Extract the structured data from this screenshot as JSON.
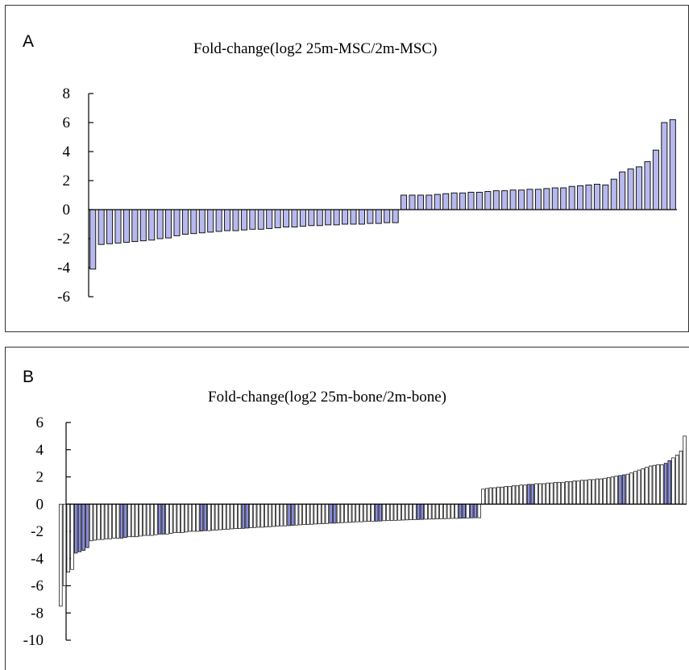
{
  "chart_data": [
    {
      "panel": "A",
      "type": "bar",
      "title": "Fold-change(log2 25m-MSC/2m-MSC)",
      "ylim": [
        -6,
        8
      ],
      "yticks": [
        8,
        6,
        4,
        2,
        0,
        -2,
        -4,
        -6
      ],
      "grid": false,
      "legend": "none",
      "colors": {
        "bar_fill": "#b7b9ee",
        "bar_edge": "#000000"
      },
      "values": [
        -4.1,
        -2.4,
        -2.35,
        -2.3,
        -2.25,
        -2.2,
        -2.15,
        -2.1,
        -2.0,
        -1.95,
        -1.8,
        -1.7,
        -1.65,
        -1.6,
        -1.55,
        -1.5,
        -1.45,
        -1.45,
        -1.4,
        -1.35,
        -1.35,
        -1.3,
        -1.25,
        -1.2,
        -1.2,
        -1.15,
        -1.1,
        -1.1,
        -1.05,
        -1.05,
        -1.0,
        -1.0,
        -1.0,
        -0.95,
        -0.95,
        -0.9,
        -0.9,
        1.0,
        1.0,
        1.0,
        1.0,
        1.05,
        1.1,
        1.15,
        1.15,
        1.2,
        1.2,
        1.25,
        1.3,
        1.3,
        1.35,
        1.35,
        1.4,
        1.4,
        1.45,
        1.5,
        1.5,
        1.6,
        1.65,
        1.7,
        1.75,
        1.7,
        2.1,
        2.6,
        2.8,
        2.95,
        3.3,
        4.1,
        6.0,
        6.2
      ]
    },
    {
      "panel": "B",
      "type": "bar",
      "title": "Fold-change(log2 25m-bone/2m-bone)",
      "ylim": [
        -10,
        6
      ],
      "yticks": [
        6,
        4,
        2,
        0,
        -2,
        -4,
        -6,
        -8,
        -10
      ],
      "grid": false,
      "legend": "none",
      "colors": {
        "bar_fill": "#ffffff",
        "highlight_fill": "#8a8cd8",
        "bar_edge": "#000000"
      },
      "values": [
        -7.5,
        -6.0,
        -5.0,
        -4.8,
        -3.6,
        -3.5,
        -3.4,
        -3.2,
        -2.7,
        -2.65,
        -2.6,
        -2.6,
        -2.55,
        -2.55,
        -2.5,
        -2.5,
        -2.5,
        -2.45,
        -2.4,
        -2.4,
        -2.4,
        -2.35,
        -2.3,
        -2.3,
        -2.3,
        -2.25,
        -2.2,
        -2.2,
        -2.2,
        -2.15,
        -2.1,
        -2.1,
        -2.1,
        -2.05,
        -2.0,
        -2.0,
        -2.0,
        -1.98,
        -1.95,
        -1.95,
        -1.92,
        -1.9,
        -1.88,
        -1.86,
        -1.84,
        -1.82,
        -1.8,
        -1.8,
        -1.78,
        -1.76,
        -1.74,
        -1.72,
        -1.7,
        -1.7,
        -1.68,
        -1.66,
        -1.64,
        -1.62,
        -1.6,
        -1.6,
        -1.58,
        -1.56,
        -1.54,
        -1.52,
        -1.5,
        -1.5,
        -1.48,
        -1.46,
        -1.45,
        -1.44,
        -1.42,
        -1.4,
        -1.4,
        -1.38,
        -1.36,
        -1.35,
        -1.34,
        -1.32,
        -1.3,
        -1.3,
        -1.28,
        -1.27,
        -1.26,
        -1.25,
        -1.24,
        -1.22,
        -1.2,
        -1.2,
        -1.19,
        -1.18,
        -1.17,
        -1.16,
        -1.15,
        -1.14,
        -1.13,
        -1.12,
        -1.11,
        -1.1,
        -1.1,
        -1.09,
        -1.08,
        -1.07,
        -1.06,
        -1.05,
        -1.05,
        -1.04,
        -1.03,
        -1.02,
        -1.01,
        -1.0,
        -1.0,
        1.1,
        1.15,
        1.2,
        1.2,
        1.25,
        1.25,
        1.3,
        1.3,
        1.35,
        1.35,
        1.4,
        1.4,
        1.45,
        1.45,
        1.5,
        1.5,
        1.5,
        1.55,
        1.55,
        1.6,
        1.6,
        1.6,
        1.65,
        1.65,
        1.7,
        1.7,
        1.75,
        1.75,
        1.8,
        1.8,
        1.85,
        1.85,
        1.9,
        1.95,
        2.0,
        2.05,
        2.1,
        2.15,
        2.2,
        2.3,
        2.4,
        2.5,
        2.6,
        2.7,
        2.8,
        2.85,
        2.9,
        2.9,
        3.0,
        3.2,
        3.4,
        3.6,
        3.9,
        5.0
      ],
      "highlighted": [
        4,
        5,
        6,
        7,
        16,
        17,
        26,
        27,
        37,
        38,
        48,
        49,
        60,
        61,
        71,
        72,
        83,
        84,
        94,
        95,
        105,
        106,
        108,
        109,
        123,
        124,
        147,
        148,
        159,
        160
      ]
    }
  ],
  "panels": {
    "A": {
      "label": "A"
    },
    "B": {
      "label": "B"
    }
  }
}
